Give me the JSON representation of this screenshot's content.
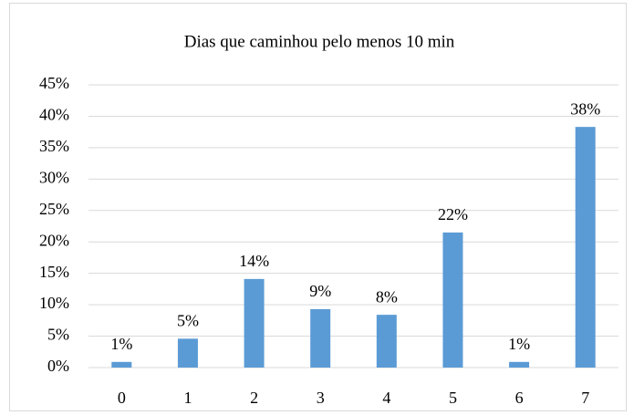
{
  "chart_data": {
    "type": "bar",
    "title": "Dias que caminhou pelo menos 10 min",
    "categories": [
      "0",
      "1",
      "2",
      "3",
      "4",
      "5",
      "6",
      "7"
    ],
    "values": [
      0.9,
      4.6,
      14.1,
      9.3,
      8.4,
      21.5,
      0.9,
      38.3
    ],
    "value_labels": [
      "1%",
      "5%",
      "14%",
      "9%",
      "8%",
      "22%",
      "1%",
      "38%"
    ],
    "color": "#5b9bd5",
    "ylim": [
      0,
      45
    ],
    "yticks": [
      {
        "value": 0,
        "label": "0%"
      },
      {
        "value": 5,
        "label": "5%"
      },
      {
        "value": 10,
        "label": "10%"
      },
      {
        "value": 15,
        "label": "15%"
      },
      {
        "value": 20,
        "label": "20%"
      },
      {
        "value": 25,
        "label": "25%"
      },
      {
        "value": 30,
        "label": "30%"
      },
      {
        "value": 35,
        "label": "35%"
      },
      {
        "value": 40,
        "label": "40%"
      },
      {
        "value": 45,
        "label": "45%"
      }
    ],
    "grid": true
  }
}
